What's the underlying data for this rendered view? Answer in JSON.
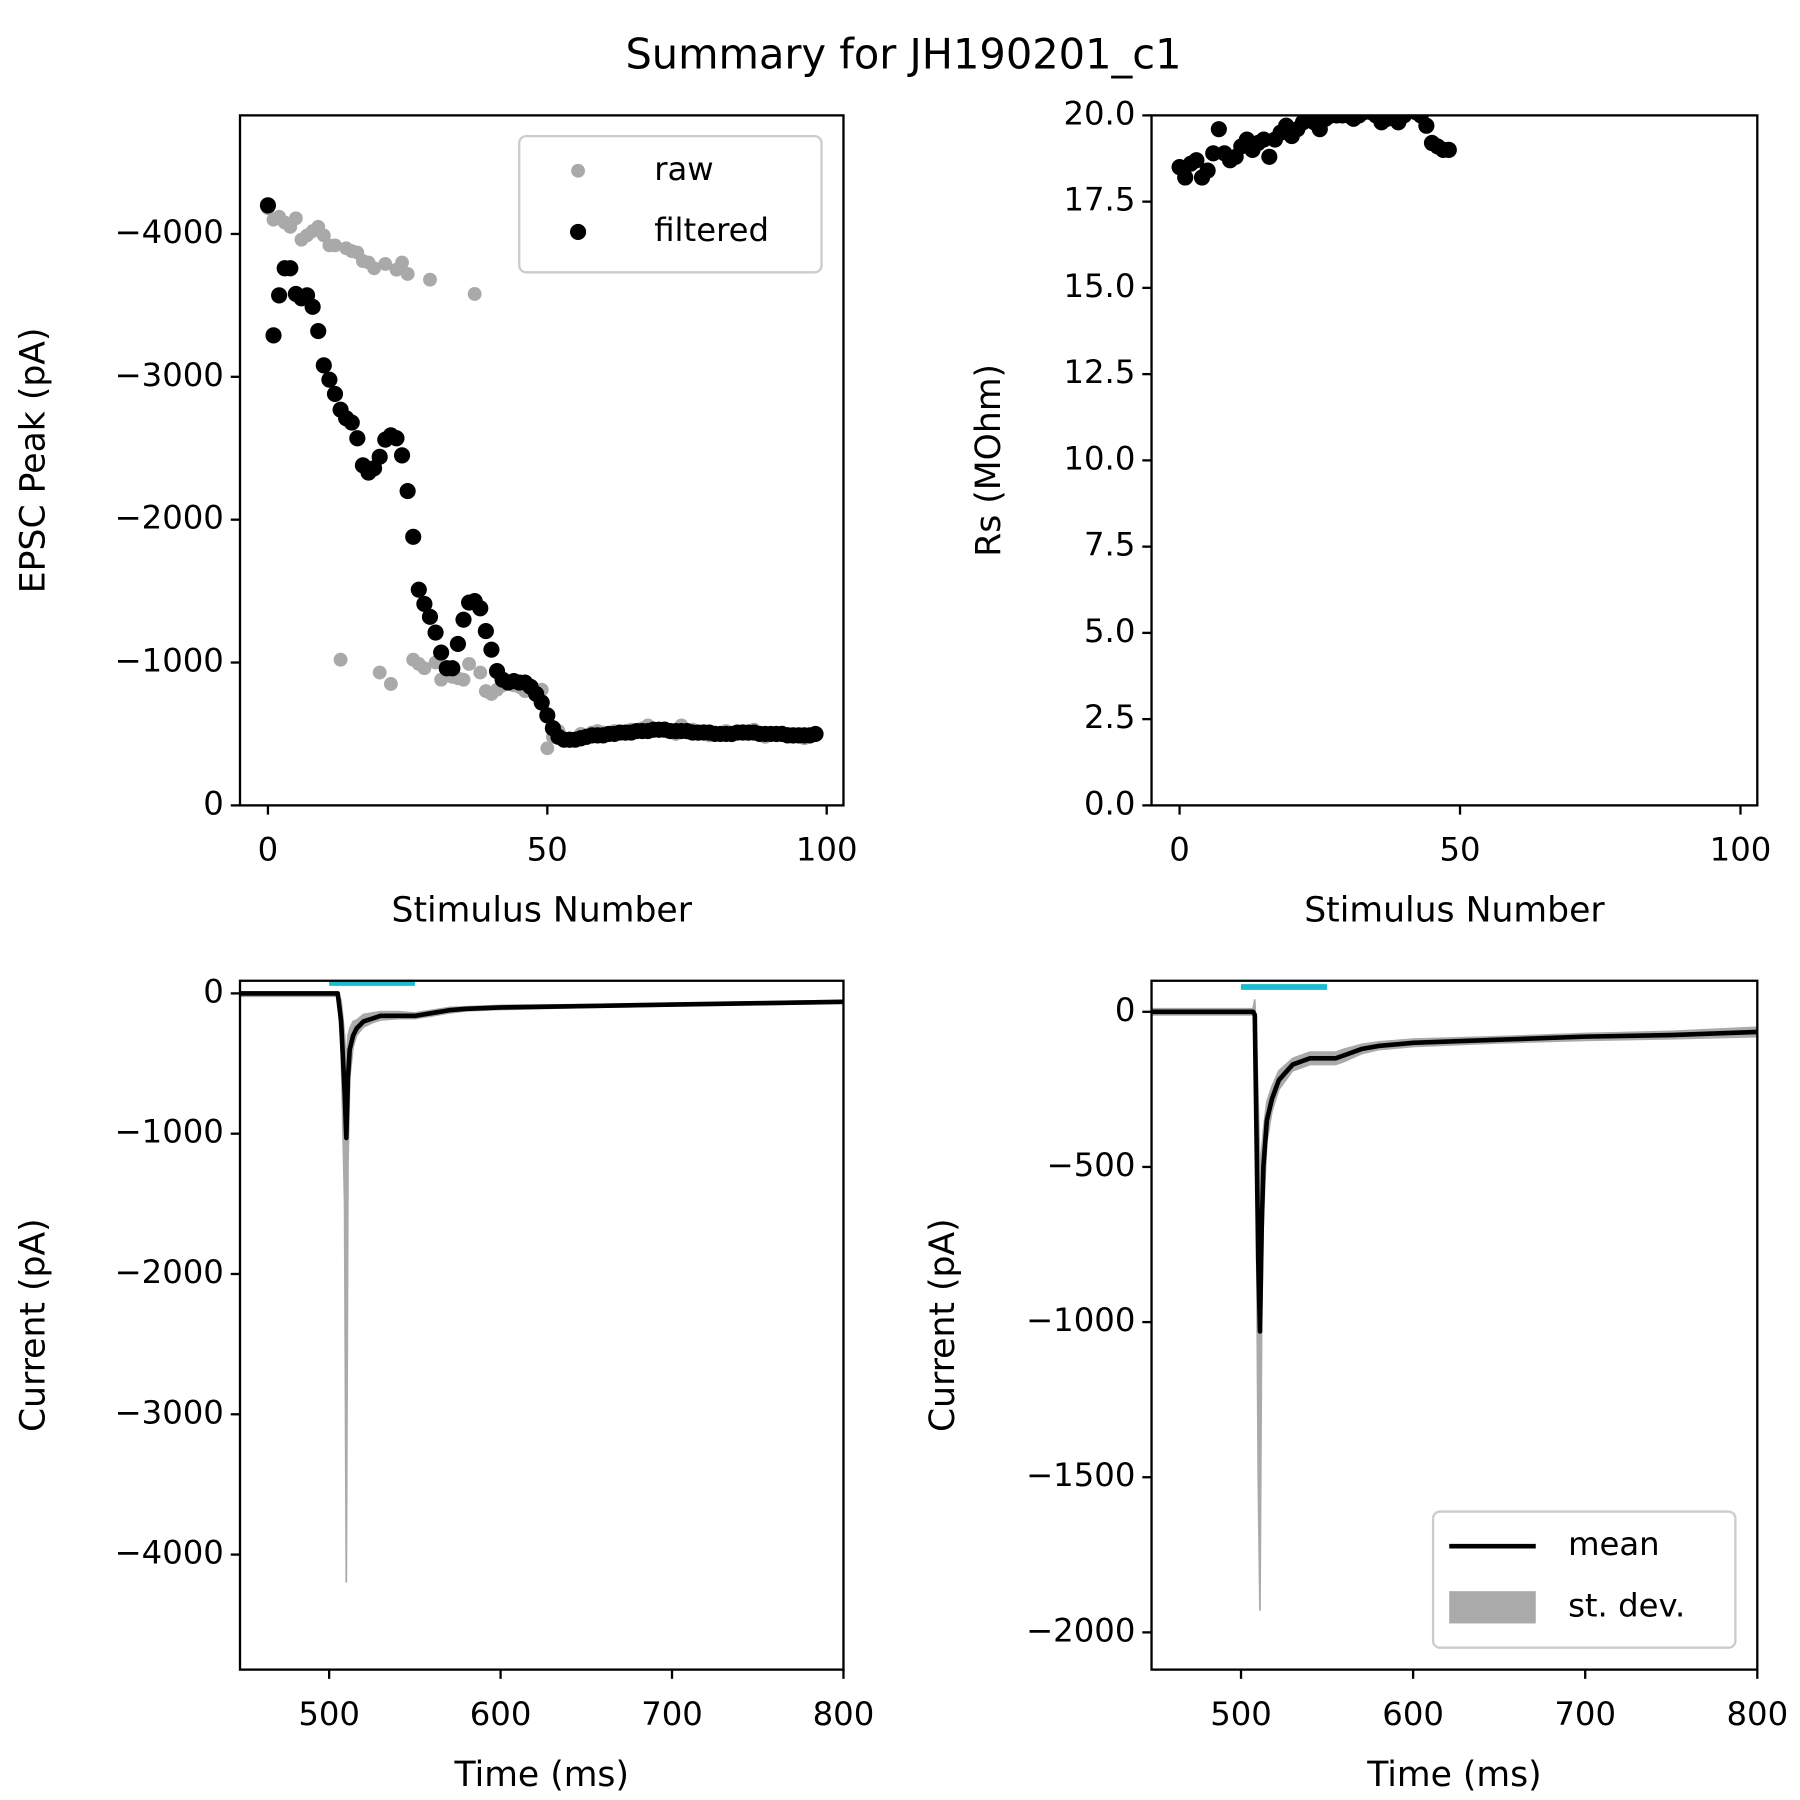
{
  "title": "Summary for JH190201_c1",
  "chart_data": [
    {
      "type": "scatter",
      "xlabel": "Stimulus Number",
      "ylabel": "EPSC Peak (pA)",
      "xlim": [
        -5,
        103
      ],
      "ylim": [
        0,
        -4830
      ],
      "xticks": [
        0,
        50,
        100
      ],
      "yticks": [
        0,
        {
          "value": -1000,
          "label": "−1000"
        },
        {
          "value": -2000,
          "label": "−2000"
        },
        {
          "value": -3000,
          "label": "−3000"
        },
        {
          "value": -4000,
          "label": "−4000"
        }
      ],
      "legend": "upper right",
      "x": [
        0,
        1,
        2,
        3,
        4,
        5,
        6,
        7,
        8,
        9,
        10,
        11,
        12,
        13,
        14,
        15,
        16,
        17,
        18,
        19,
        20,
        21,
        22,
        23,
        24,
        25,
        26,
        27,
        28,
        29,
        30,
        31,
        32,
        33,
        34,
        35,
        36,
        37,
        38,
        39,
        40,
        41,
        42,
        43,
        44,
        45,
        46,
        47,
        48,
        49,
        50,
        51,
        52,
        53,
        54,
        55,
        56,
        57,
        58,
        59,
        60,
        61,
        62,
        63,
        64,
        65,
        66,
        67,
        68,
        69,
        70,
        71,
        72,
        73,
        74,
        75,
        76,
        77,
        78,
        79,
        80,
        81,
        82,
        83,
        84,
        85,
        86,
        87,
        88,
        89,
        90,
        91,
        92,
        93,
        94,
        95,
        96,
        97,
        98
      ],
      "series": [
        {
          "name": "raw",
          "color": "#a9a9a9",
          "values": [
            -4180,
            -4100,
            -4120,
            -4080,
            -4050,
            -4110,
            -3960,
            -3990,
            -4020,
            -4050,
            -3990,
            -3920,
            -3920,
            -1020,
            -3900,
            -3880,
            -3870,
            -3810,
            -3800,
            -3760,
            -930,
            -3790,
            -850,
            -3750,
            -3800,
            -3720,
            -1020,
            -990,
            -960,
            -3680,
            -1000,
            -880,
            -960,
            -900,
            -890,
            -880,
            -990,
            -3580,
            -930,
            -800,
            -780,
            -810,
            -840,
            -860,
            -840,
            -830,
            -800,
            -810,
            -780,
            -810,
            -400,
            -480,
            -520,
            -470,
            -450,
            -460,
            -500,
            -470,
            -510,
            -520,
            -510,
            -500,
            -520,
            -510,
            -500,
            -530,
            -520,
            -540,
            -560,
            -530,
            -520,
            -540,
            -520,
            -500,
            -560,
            -510,
            -530,
            -500,
            -520,
            -490,
            -510,
            -500,
            -520,
            -490,
            -510,
            -520,
            -500,
            -530,
            -510,
            -480,
            -500,
            -490,
            -510,
            -500,
            -480,
            -490,
            -470,
            -490,
            -500
          ]
        },
        {
          "name": "filtered",
          "color": "#000000",
          "values": [
            -4200,
            -3290,
            -3570,
            -3760,
            -3760,
            -3580,
            -3550,
            -3570,
            -3490,
            -3320,
            -3080,
            -2980,
            -2880,
            -2770,
            -2710,
            -2680,
            -2570,
            -2380,
            -2330,
            -2360,
            -2440,
            -2560,
            -2590,
            -2570,
            -2450,
            -2200,
            -1880,
            -1510,
            -1410,
            -1320,
            -1210,
            -1070,
            -960,
            -960,
            -1130,
            -1300,
            -1420,
            -1430,
            -1380,
            -1220,
            -1090,
            -940,
            -880,
            -860,
            -870,
            -860,
            -860,
            -830,
            -780,
            -720,
            -630,
            -540,
            -480,
            -460,
            -460,
            -460,
            -470,
            -480,
            -490,
            -490,
            -490,
            -500,
            -500,
            -510,
            -510,
            -510,
            -520,
            -520,
            -520,
            -530,
            -530,
            -530,
            -520,
            -520,
            -520,
            -520,
            -510,
            -510,
            -510,
            -510,
            -500,
            -500,
            -500,
            -500,
            -510,
            -510,
            -510,
            -510,
            -500,
            -500,
            -500,
            -500,
            -500,
            -490,
            -490,
            -490,
            -490,
            -490,
            -500
          ]
        }
      ]
    },
    {
      "type": "scatter",
      "xlabel": "Stimulus Number",
      "ylabel": "Rs (MOhm)",
      "xlim": [
        -5,
        103
      ],
      "ylim": [
        0,
        20
      ],
      "xticks": [
        0,
        50,
        100
      ],
      "yticks": [
        {
          "value": 0,
          "label": "0.0"
        },
        2.5,
        {
          "value": 5,
          "label": "5.0"
        },
        7.5,
        {
          "value": 10,
          "label": "10.0"
        },
        12.5,
        {
          "value": 15,
          "label": "15.0"
        },
        17.5,
        {
          "value": 20,
          "label": "20.0"
        }
      ],
      "x": [
        0,
        1,
        2,
        3,
        4,
        5,
        6,
        7,
        8,
        9,
        10,
        11,
        12,
        13,
        14,
        15,
        16,
        17,
        18,
        19,
        20,
        21,
        22,
        23,
        24,
        25,
        26,
        27,
        28,
        29,
        30,
        31,
        32,
        33,
        34,
        35,
        36,
        37,
        38,
        39,
        40,
        41,
        42,
        43,
        44,
        45,
        46,
        47,
        48
      ],
      "series": [
        {
          "color": "#000000",
          "values": [
            18.5,
            18.2,
            18.6,
            18.7,
            18.2,
            18.4,
            18.9,
            19.6,
            18.9,
            18.7,
            18.8,
            19.1,
            19.3,
            19.0,
            19.2,
            19.3,
            18.8,
            19.3,
            19.5,
            19.7,
            19.4,
            19.6,
            19.8,
            20.0,
            19.8,
            19.6,
            19.9,
            20.0,
            20.0,
            20.0,
            20.0,
            19.9,
            20.0,
            20.1,
            20.1,
            20.0,
            19.8,
            19.9,
            20.0,
            19.8,
            20.0,
            20.2,
            20.1,
            20.0,
            19.7,
            19.2,
            19.1,
            19.0,
            19.0
          ]
        }
      ]
    },
    {
      "type": "line",
      "xlabel": "Time (ms)",
      "ylabel": "Current (pA)",
      "xlim": [
        448,
        800
      ],
      "ylim": [
        -4820,
        90
      ],
      "xticks": [
        500,
        600,
        700,
        800
      ],
      "yticks": [
        0,
        {
          "value": -1000,
          "label": "−1000"
        },
        {
          "value": -2000,
          "label": "−2000"
        },
        {
          "value": -3000,
          "label": "−3000"
        },
        {
          "value": -4000,
          "label": "−4000"
        }
      ],
      "stim_bar": {
        "x": [
          500,
          550
        ],
        "y": 74,
        "color": "#17becf"
      },
      "x": [
        448,
        500,
        505,
        507,
        509,
        510,
        511,
        512,
        514,
        516,
        520,
        525,
        530,
        540,
        550,
        560,
        570,
        580,
        600,
        650,
        700,
        750,
        800
      ],
      "band": {
        "color": "#aaaaaa",
        "lower": [
          -20,
          -20,
          -20,
          -400,
          -1500,
          -4200,
          -1200,
          -600,
          -380,
          -300,
          -240,
          -210,
          -190,
          -180,
          -180,
          -160,
          -140,
          -125,
          -115,
          -100,
          -90,
          -80,
          -70
        ],
        "upper": [
          10,
          10,
          10,
          -50,
          -300,
          -500,
          -300,
          -250,
          -200,
          -190,
          -150,
          -140,
          -130,
          -130,
          -140,
          -120,
          -100,
          -95,
          -85,
          -80,
          -70,
          -60,
          -50
        ]
      },
      "series": [
        {
          "color": "#000000",
          "values": [
            0,
            0,
            0,
            -200,
            -700,
            -1030,
            -600,
            -400,
            -300,
            -250,
            -200,
            -180,
            -160,
            -160,
            -160,
            -140,
            -120,
            -110,
            -100,
            -90,
            -80,
            -70,
            -60
          ]
        }
      ]
    },
    {
      "type": "line",
      "xlabel": "Time (ms)",
      "ylabel": "Current (pA)",
      "xlim": [
        448,
        800
      ],
      "ylim": [
        -2120,
        100
      ],
      "xticks": [
        500,
        600,
        700,
        800
      ],
      "yticks": [
        0,
        {
          "value": -500,
          "label": "−500"
        },
        {
          "value": -1000,
          "label": "−1000"
        },
        {
          "value": -1500,
          "label": "−1500"
        },
        {
          "value": -2000,
          "label": "−2000"
        }
      ],
      "legend": "lower right",
      "stim_bar": {
        "x": [
          500,
          550
        ],
        "y": 80,
        "color": "#17becf"
      },
      "x": [
        448,
        505,
        507,
        508,
        509,
        510,
        511,
        512,
        513,
        515,
        518,
        522,
        530,
        540,
        555,
        560,
        570,
        580,
        600,
        650,
        700,
        750,
        800
      ],
      "band": {
        "name": "st. dev.",
        "color": "#aaaaaa",
        "lower": [
          -10,
          -10,
          -10,
          -40,
          -700,
          -1500,
          -1930,
          -1000,
          -650,
          -420,
          -320,
          -250,
          -190,
          -170,
          -170,
          -160,
          -135,
          -122,
          -112,
          -100,
          -92,
          -87,
          -80
        ],
        "upper": [
          10,
          10,
          10,
          40,
          -100,
          -300,
          -500,
          -450,
          -380,
          -290,
          -240,
          -190,
          -150,
          -130,
          -130,
          -120,
          -105,
          -97,
          -88,
          -80,
          -70,
          -63,
          -50
        ]
      },
      "series": [
        {
          "name": "mean",
          "color": "#000000",
          "values": [
            0,
            0,
            0,
            -10,
            -400,
            -800,
            -1030,
            -700,
            -500,
            -350,
            -280,
            -220,
            -170,
            -150,
            -150,
            -140,
            -120,
            -110,
            -100,
            -90,
            -80,
            -75,
            -65
          ]
        }
      ]
    }
  ]
}
